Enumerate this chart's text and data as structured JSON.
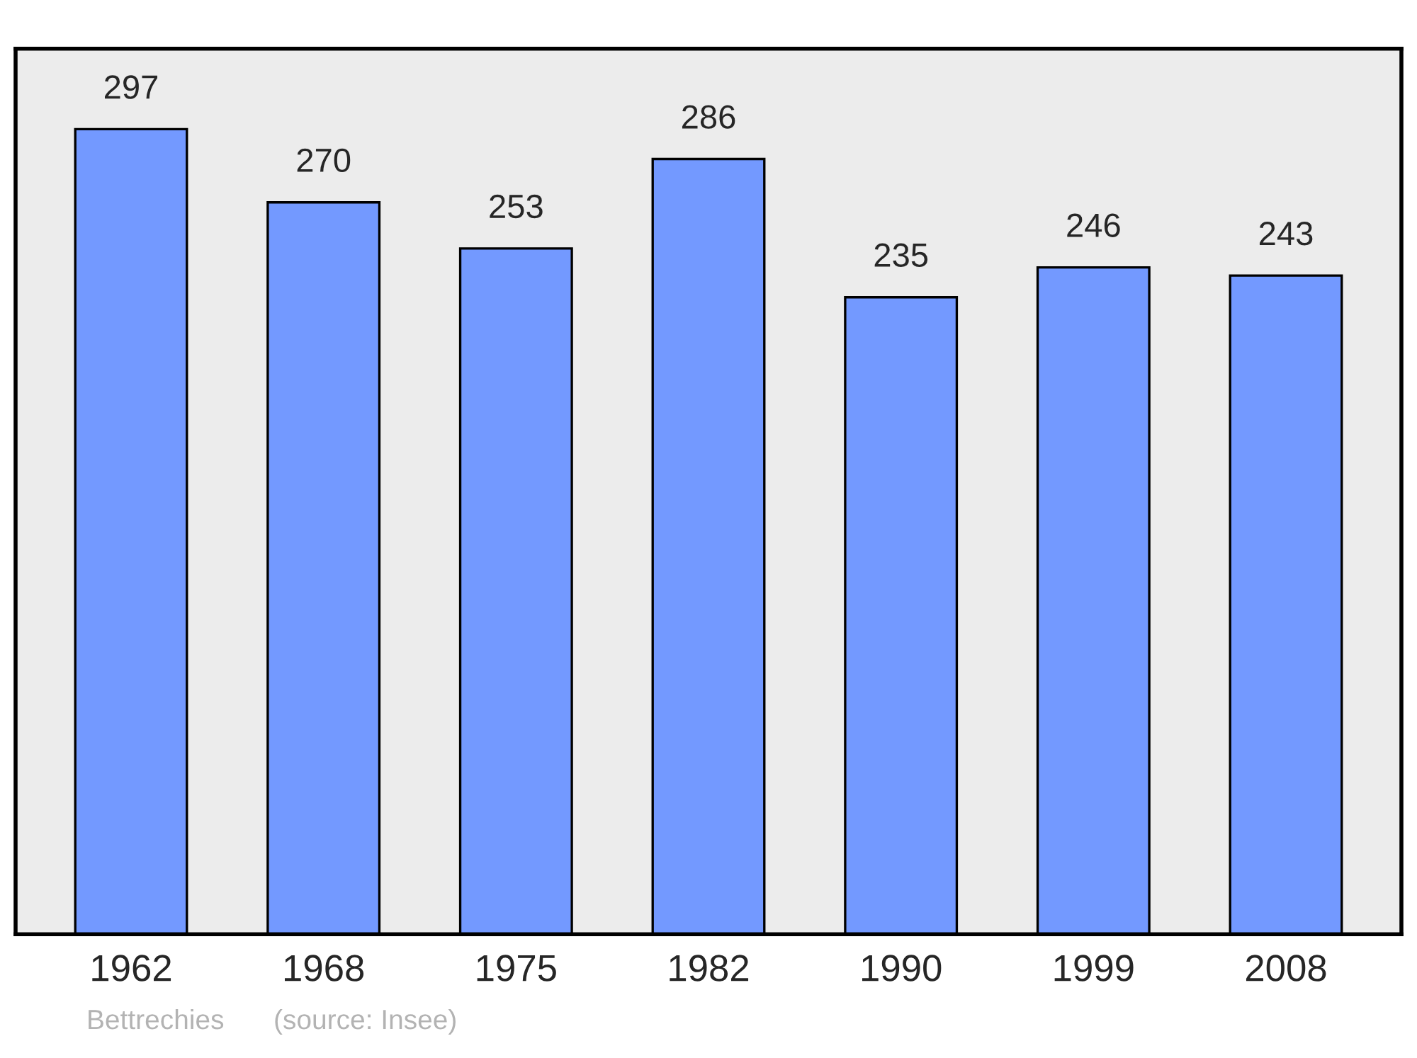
{
  "chart_data": {
    "type": "bar",
    "categories": [
      "1962",
      "1968",
      "1975",
      "1982",
      "1990",
      "1999",
      "2008"
    ],
    "values": [
      297,
      270,
      253,
      286,
      235,
      246,
      243
    ],
    "color": "#7399ff",
    "data_labels": true,
    "grid": false,
    "annotations": [
      "Bettrechies",
      "(source: Insee)"
    ]
  }
}
